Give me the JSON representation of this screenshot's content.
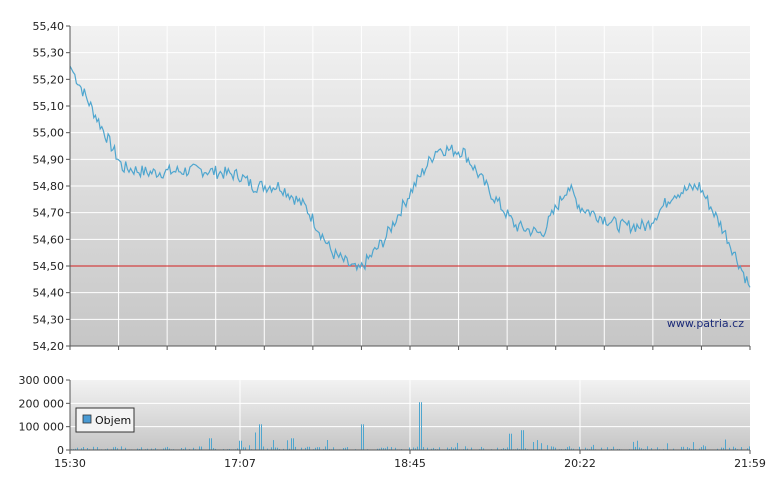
{
  "chart_data": [
    {
      "type": "line",
      "title": "",
      "ylim": [
        54.2,
        55.4
      ],
      "y_ticks": [
        "55,40",
        "55,30",
        "55,20",
        "55,10",
        "55,00",
        "54,90",
        "54,80",
        "54,70",
        "54,60",
        "54,50",
        "54,40",
        "54,30",
        "54,20"
      ],
      "reference_line": 54.5,
      "watermark": "www.patria.cz",
      "x": [
        "15:30",
        "16:00",
        "16:15",
        "16:45",
        "17:07",
        "17:15",
        "17:30",
        "17:45",
        "18:00",
        "18:15",
        "18:30",
        "18:45",
        "19:00",
        "19:15",
        "19:30",
        "19:45",
        "20:00",
        "20:15",
        "20:22",
        "20:45",
        "21:00",
        "21:15",
        "21:30",
        "21:45",
        "21:59"
      ],
      "values": [
        55.25,
        54.87,
        54.85,
        54.86,
        54.84,
        54.8,
        54.8,
        54.72,
        54.55,
        54.48,
        54.6,
        54.78,
        54.94,
        54.93,
        54.78,
        54.65,
        54.62,
        54.8,
        54.72,
        54.65,
        54.65,
        54.77,
        54.8,
        54.62,
        54.42
      ],
      "grid": true,
      "colors": {
        "line": "#4fa6cf",
        "reference": "#d21e1e",
        "grid": "#ffffff"
      }
    },
    {
      "type": "bar",
      "ylim": [
        0,
        300000
      ],
      "y_ticks": [
        "300 000",
        "200 000",
        "100 000",
        "0"
      ],
      "legend": "Objem",
      "x_ticks": [
        "15:30",
        "17:07",
        "18:45",
        "20:22",
        "21:59"
      ],
      "values": [],
      "grid": true,
      "colors": {
        "bar": "#4fa6cf",
        "legend_box": "#4a9bd4"
      }
    }
  ]
}
